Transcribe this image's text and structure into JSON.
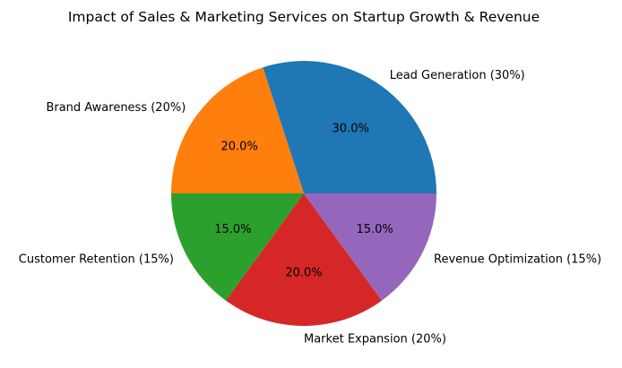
{
  "chart_data": {
    "type": "pie",
    "title": "Impact of Sales & Marketing Services on Startup Growth & Revenue",
    "start_angle_deg": 0,
    "direction": "counterclockwise",
    "slices": [
      {
        "label": "Lead Generation (30%)",
        "value": 30,
        "pct_label": "30.0%",
        "color": "#1f77b4"
      },
      {
        "label": "Brand Awareness (20%)",
        "value": 20,
        "pct_label": "20.0%",
        "color": "#ff7f0e"
      },
      {
        "label": "Customer Retention (15%)",
        "value": 15,
        "pct_label": "15.0%",
        "color": "#2ca02c"
      },
      {
        "label": "Market Expansion (20%)",
        "value": 20,
        "pct_label": "20.0%",
        "color": "#d62728"
      },
      {
        "label": "Revenue Optimization (15%)",
        "value": 15,
        "pct_label": "15.0%",
        "color": "#9467bd"
      }
    ]
  }
}
